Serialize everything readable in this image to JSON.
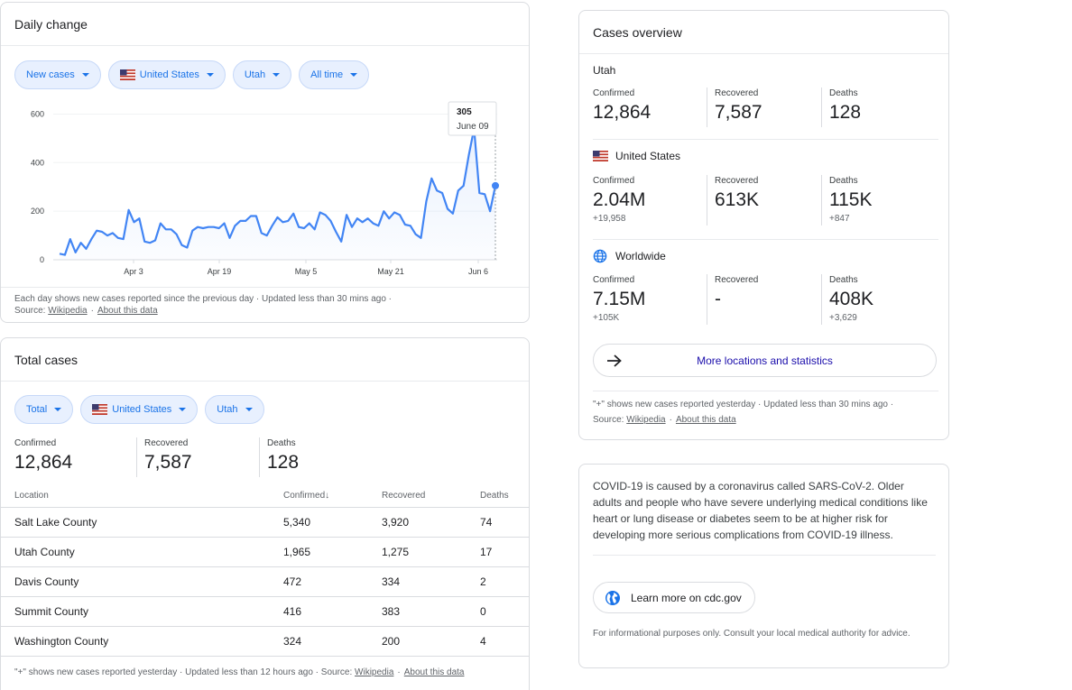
{
  "daily": {
    "title": "Daily change",
    "chips": [
      "New cases",
      "United States",
      "Utah",
      "All time"
    ],
    "tooltip": {
      "value": "305",
      "date": "June 09"
    },
    "footnote1": "Each day shows new cases reported since the previous day · Updated less than 30 mins ago ·",
    "source_label": "Source:",
    "source_link": "Wikipedia",
    "about_link": "About this data"
  },
  "chart_data": {
    "type": "area",
    "title": "",
    "xlabel": "",
    "ylabel": "",
    "ylim": [
      0,
      650
    ],
    "yticks": [
      0,
      200,
      400,
      600
    ],
    "xtick_labels": [
      "Apr 3",
      "Apr 19",
      "May 5",
      "May 21",
      "Jun 6"
    ],
    "grid": true,
    "color": "#4285f4",
    "series": [
      {
        "values": [
          25,
          20,
          85,
          30,
          70,
          45,
          85,
          120,
          115,
          100,
          110,
          90,
          85,
          205,
          155,
          170,
          75,
          70,
          80,
          150,
          125,
          125,
          105,
          60,
          50,
          120,
          135,
          130,
          135,
          135,
          130,
          150,
          90,
          140,
          160,
          160,
          180,
          180,
          110,
          100,
          140,
          175,
          155,
          160,
          190,
          135,
          130,
          150,
          125,
          195,
          185,
          160,
          115,
          75,
          185,
          135,
          170,
          155,
          170,
          150,
          140,
          200,
          170,
          195,
          185,
          145,
          140,
          105,
          90,
          240,
          335,
          285,
          275,
          210,
          190,
          285,
          305,
          430,
          540,
          275,
          270,
          200,
          305
        ]
      }
    ]
  },
  "total": {
    "title": "Total cases",
    "chips": [
      "Total",
      "United States",
      "Utah"
    ],
    "stats": [
      {
        "label": "Confirmed",
        "value": "12,864"
      },
      {
        "label": "Recovered",
        "value": "7,587"
      },
      {
        "label": "Deaths",
        "value": "128"
      }
    ],
    "columns": [
      "Location",
      "Confirmed",
      "Recovered",
      "Deaths"
    ],
    "sort_arrow": "↓",
    "rows": [
      [
        "Salt Lake County",
        "5,340",
        "3,920",
        "74"
      ],
      [
        "Utah County",
        "1,965",
        "1,275",
        "17"
      ],
      [
        "Davis County",
        "472",
        "334",
        "2"
      ],
      [
        "Summit County",
        "416",
        "383",
        "0"
      ],
      [
        "Washington County",
        "324",
        "200",
        "4"
      ]
    ],
    "footnote": "\"+\" shows new cases reported yesterday · Updated less than 12 hours ago ·",
    "source_label": "Source:",
    "source_link": "Wikipedia",
    "about_link": "About this data"
  },
  "overview": {
    "title": "Cases overview",
    "sections": [
      {
        "name": "Utah",
        "icon": "none",
        "stats": [
          {
            "label": "Confirmed",
            "value": "12,864",
            "delta": ""
          },
          {
            "label": "Recovered",
            "value": "7,587",
            "delta": ""
          },
          {
            "label": "Deaths",
            "value": "128",
            "delta": ""
          }
        ]
      },
      {
        "name": "United States",
        "icon": "us-flag-icon",
        "stats": [
          {
            "label": "Confirmed",
            "value": "2.04M",
            "delta": "+19,958"
          },
          {
            "label": "Recovered",
            "value": "613K",
            "delta": ""
          },
          {
            "label": "Deaths",
            "value": "115K",
            "delta": "+847"
          }
        ]
      },
      {
        "name": "Worldwide",
        "icon": "globe-icon",
        "stats": [
          {
            "label": "Confirmed",
            "value": "7.15M",
            "delta": "+105K"
          },
          {
            "label": "Recovered",
            "value": "-",
            "delta": ""
          },
          {
            "label": "Deaths",
            "value": "408K",
            "delta": "+3,629"
          }
        ]
      }
    ],
    "more_button": "More locations and statistics",
    "footnote": "\"+\" shows new cases reported yesterday · Updated less than 30 mins ago ·",
    "source_label": "Source:",
    "source_link": "Wikipedia",
    "about_link": "About this data"
  },
  "info": {
    "text": "COVID-19 is caused by a coronavirus called SARS-CoV-2. Older adults and people who have severe underlying medical conditions like heart or lung disease or diabetes seem to be at higher risk for developing more serious complications from COVID-19 illness.",
    "cdc_button": "Learn more on cdc.gov",
    "disclaimer": "For informational purposes only. Consult your local medical authority for advice."
  },
  "colors": {
    "accent": "#1a73e8",
    "line": "#4285f4",
    "chip_bg": "#e8f0fe",
    "link_dark": "#1a0dab"
  }
}
